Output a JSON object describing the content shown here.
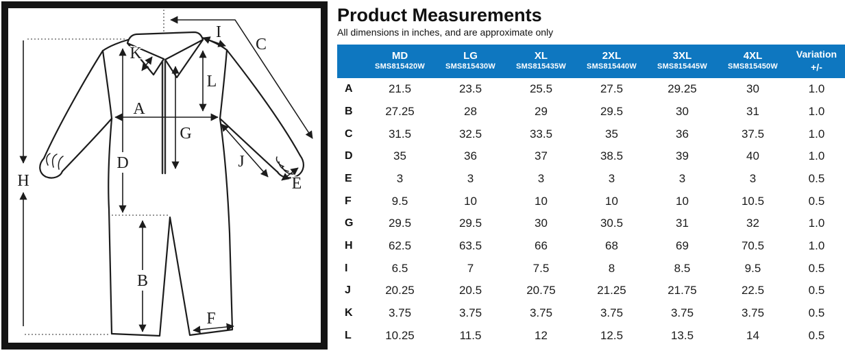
{
  "page": {
    "title": "Product Measurements",
    "subtitle": "All dimensions in inches, and are approximate only"
  },
  "colors": {
    "header_bg": "#0E77C0",
    "header_text": "#ffffff",
    "body_text": "#1a1a1a",
    "diagram_line": "#1c1c1c"
  },
  "diagram": {
    "labels": [
      "A",
      "B",
      "C",
      "D",
      "E",
      "F",
      "G",
      "H",
      "I",
      "J",
      "K",
      "L"
    ]
  },
  "table": {
    "columns": [
      {
        "size": "MD",
        "sku": "SMS815420W"
      },
      {
        "size": "LG",
        "sku": "SMS815430W"
      },
      {
        "size": "XL",
        "sku": "SMS815435W"
      },
      {
        "size": "2XL",
        "sku": "SMS815440W"
      },
      {
        "size": "3XL",
        "sku": "SMS815445W"
      },
      {
        "size": "4XL",
        "sku": "SMS815450W"
      }
    ],
    "variation_header": {
      "line1": "Variation",
      "line2": "+/-"
    },
    "rows": [
      {
        "label": "A",
        "values": [
          "21.5",
          "23.5",
          "25.5",
          "27.5",
          "29.25",
          "30"
        ],
        "variation": "1.0"
      },
      {
        "label": "B",
        "values": [
          "27.25",
          "28",
          "29",
          "29.5",
          "30",
          "31"
        ],
        "variation": "1.0"
      },
      {
        "label": "C",
        "values": [
          "31.5",
          "32.5",
          "33.5",
          "35",
          "36",
          "37.5"
        ],
        "variation": "1.0"
      },
      {
        "label": "D",
        "values": [
          "35",
          "36",
          "37",
          "38.5",
          "39",
          "40"
        ],
        "variation": "1.0"
      },
      {
        "label": "E",
        "values": [
          "3",
          "3",
          "3",
          "3",
          "3",
          "3"
        ],
        "variation": "0.5"
      },
      {
        "label": "F",
        "values": [
          "9.5",
          "10",
          "10",
          "10",
          "10",
          "10.5"
        ],
        "variation": "0.5"
      },
      {
        "label": "G",
        "values": [
          "29.5",
          "29.5",
          "30",
          "30.5",
          "31",
          "32"
        ],
        "variation": "1.0"
      },
      {
        "label": "H",
        "values": [
          "62.5",
          "63.5",
          "66",
          "68",
          "69",
          "70.5"
        ],
        "variation": "1.0"
      },
      {
        "label": "I",
        "values": [
          "6.5",
          "7",
          "7.5",
          "8",
          "8.5",
          "9.5"
        ],
        "variation": "0.5"
      },
      {
        "label": "J",
        "values": [
          "20.25",
          "20.5",
          "20.75",
          "21.25",
          "21.75",
          "22.5"
        ],
        "variation": "0.5"
      },
      {
        "label": "K",
        "values": [
          "3.75",
          "3.75",
          "3.75",
          "3.75",
          "3.75",
          "3.75"
        ],
        "variation": "0.5"
      },
      {
        "label": "L",
        "values": [
          "10.25",
          "11.5",
          "12",
          "12.5",
          "13.5",
          "14"
        ],
        "variation": "0.5"
      }
    ]
  }
}
